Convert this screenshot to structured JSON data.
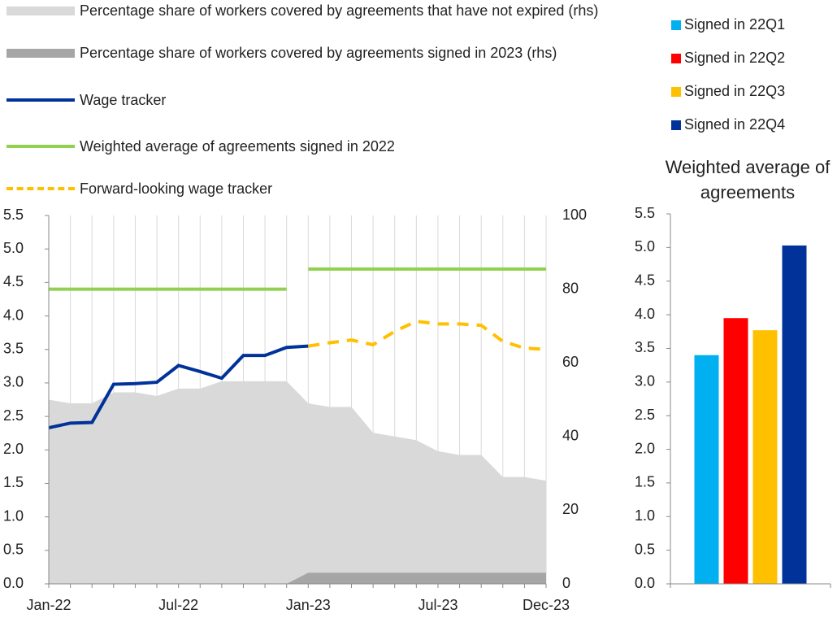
{
  "chart_data": [
    {
      "type": "line",
      "categories": [
        "Jan-22",
        null,
        null,
        null,
        null,
        null,
        "Jul-22",
        null,
        null,
        null,
        null,
        null,
        "Jan-23",
        null,
        null,
        null,
        null,
        null,
        "Jul-23",
        null,
        null,
        null,
        null,
        "Dec-23"
      ],
      "series": [
        {
          "name": "Percentage share of workers covered by agreements that have not expired (rhs)",
          "color": "#d9d9d9",
          "mark": "area",
          "axis": "y2",
          "values": [
            50,
            49,
            49,
            52,
            52,
            51,
            53,
            53,
            55,
            55,
            55,
            55,
            49,
            48,
            48,
            41,
            40,
            39,
            36,
            35,
            35,
            29,
            29,
            28
          ]
        },
        {
          "name": "Percentage share of workers covered by agreements signed in 2023 (rhs)",
          "color": "#a6a6a6",
          "mark": "area",
          "axis": "y2",
          "values": [
            0,
            0,
            0,
            0,
            0,
            0,
            0,
            0,
            0,
            0,
            0,
            0,
            3,
            3,
            3,
            3,
            3,
            3,
            3,
            3,
            3,
            3,
            3,
            3
          ]
        },
        {
          "name": "Wage tracker",
          "color": "#003299",
          "mark": "line",
          "values": [
            2.33,
            2.4,
            2.41,
            2.98,
            2.99,
            3.01,
            3.26,
            3.17,
            3.07,
            3.41,
            3.41,
            3.53,
            3.55,
            null,
            null,
            null,
            null,
            null,
            null,
            null,
            null,
            null,
            null,
            null
          ]
        },
        {
          "name": "Weighted average of agreements signed in 2022",
          "color": "#92d050",
          "mark": "step",
          "values": [
            4.4,
            4.4,
            4.4,
            4.4,
            4.4,
            4.4,
            4.4,
            4.4,
            4.4,
            4.4,
            4.4,
            4.4,
            4.7,
            4.7,
            4.7,
            4.7,
            4.7,
            4.7,
            4.7,
            4.7,
            4.7,
            4.7,
            4.7,
            4.7
          ]
        },
        {
          "name": "Forward-looking wage tracker",
          "color": "#ffc000",
          "mark": "line",
          "dashed": true,
          "values": [
            null,
            null,
            null,
            null,
            null,
            null,
            null,
            null,
            null,
            null,
            null,
            null,
            3.55,
            3.6,
            3.64,
            3.57,
            3.77,
            3.92,
            3.88,
            3.88,
            3.86,
            3.62,
            3.52,
            3.5
          ]
        }
      ],
      "ylim": [
        0,
        5.5
      ],
      "yticks": [
        {
          "value": 0,
          "label": "0.0"
        },
        0.5,
        {
          "value": 1,
          "label": "1.0"
        },
        1.5,
        {
          "value": 2,
          "label": "2.0"
        },
        2.5,
        {
          "value": 3,
          "label": "3.0"
        },
        3.5,
        {
          "value": 4,
          "label": "4.0"
        },
        4.5,
        {
          "value": 5,
          "label": "5.0"
        },
        5.5
      ],
      "y2lim": [
        0,
        100
      ],
      "y2ticks": [
        0,
        20,
        40,
        60,
        80,
        100
      ],
      "grid": true
    },
    {
      "type": "bar",
      "title": "Weighted average of agreements",
      "categories": [
        null
      ],
      "series": [
        {
          "name": "Signed in 22Q1",
          "color": "#00b0f0",
          "values": [
            3.4
          ]
        },
        {
          "name": "Signed in 22Q2",
          "color": "#ff0000",
          "values": [
            3.95
          ]
        },
        {
          "name": "Signed in 22Q3",
          "color": "#ffc000",
          "values": [
            3.77
          ]
        },
        {
          "name": "Signed in 22Q4",
          "color": "#003299",
          "values": [
            5.03
          ]
        }
      ],
      "ylim": [
        0,
        5.5
      ],
      "yticks": [
        {
          "value": 0,
          "label": "0.0"
        },
        0.5,
        {
          "value": 1,
          "label": "1.0"
        },
        1.5,
        {
          "value": 2,
          "label": "2.0"
        },
        2.5,
        {
          "value": 3,
          "label": "3.0"
        },
        3.5,
        {
          "value": 4,
          "label": "4.0"
        },
        4.5,
        {
          "value": 5,
          "label": "5.0"
        },
        5.5
      ]
    }
  ]
}
